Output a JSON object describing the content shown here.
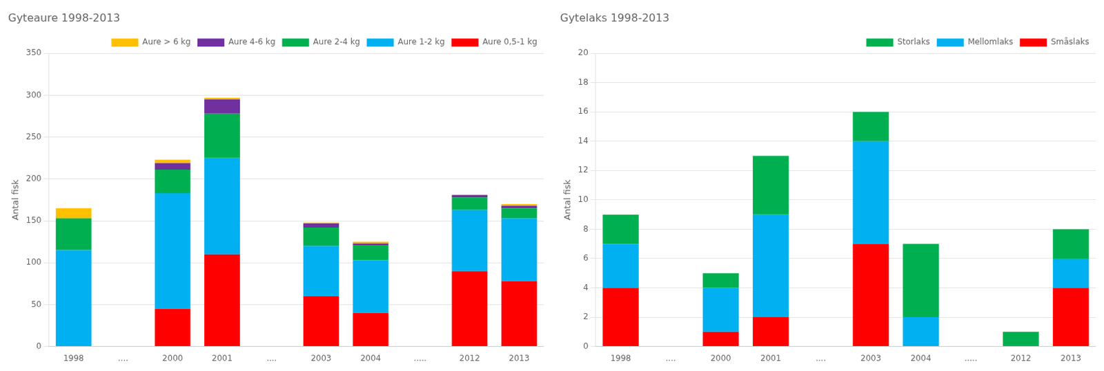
{
  "chart_data": [
    {
      "type": "bar",
      "stacked": true,
      "title": "Gyteaure 1998-2013",
      "ylabel": "Antal fisk",
      "categories": [
        "1998",
        "....",
        "2000",
        "2001",
        "....",
        "2003",
        "2004",
        ".....",
        "2012",
        "2013"
      ],
      "series": [
        {
          "name": "Aure 0,5-1 kg",
          "color": "#FF0000",
          "values": [
            0,
            null,
            45,
            110,
            null,
            60,
            40,
            null,
            90,
            78
          ]
        },
        {
          "name": "Aure 1-2 kg",
          "color": "#00B0F0",
          "values": [
            115,
            null,
            138,
            115,
            null,
            60,
            63,
            null,
            73,
            75
          ]
        },
        {
          "name": "Aure 2-4 kg",
          "color": "#00B050",
          "values": [
            38,
            null,
            28,
            53,
            null,
            22,
            18,
            null,
            15,
            12
          ]
        },
        {
          "name": "Aure 4-6 kg",
          "color": "#7030A0",
          "values": [
            0,
            null,
            8,
            17,
            null,
            5,
            2,
            null,
            3,
            3
          ]
        },
        {
          "name": "Aure > 6 kg",
          "color": "#FFC000",
          "values": [
            12,
            null,
            4,
            2,
            null,
            1,
            2,
            null,
            0,
            2
          ]
        }
      ],
      "ylim": [
        0,
        350
      ],
      "yticks": [
        0,
        50,
        100,
        150,
        200,
        250,
        300,
        350
      ],
      "grid": true,
      "legend": "upper right"
    },
    {
      "type": "bar",
      "stacked": true,
      "title": "Gytelaks 1998-2013",
      "ylabel": "Antal fisk",
      "categories": [
        "1998",
        "....",
        "2000",
        "2001",
        "....",
        "2003",
        "2004",
        ".....",
        "2012",
        "2013"
      ],
      "series": [
        {
          "name": "Småslaks",
          "color": "#FF0000",
          "values": [
            4,
            null,
            1,
            2,
            null,
            7,
            0,
            null,
            0,
            4
          ]
        },
        {
          "name": "Mellomlaks",
          "color": "#00B0F0",
          "values": [
            3,
            null,
            3,
            7,
            null,
            7,
            2,
            null,
            0,
            2
          ]
        },
        {
          "name": "Storlaks",
          "color": "#00B050",
          "values": [
            2,
            null,
            1,
            4,
            null,
            2,
            5,
            null,
            1,
            2
          ]
        }
      ],
      "ylim": [
        0,
        20
      ],
      "yticks": [
        0,
        2,
        4,
        6,
        8,
        10,
        12,
        14,
        16,
        18,
        20
      ],
      "grid": true,
      "legend": "upper right"
    }
  ]
}
